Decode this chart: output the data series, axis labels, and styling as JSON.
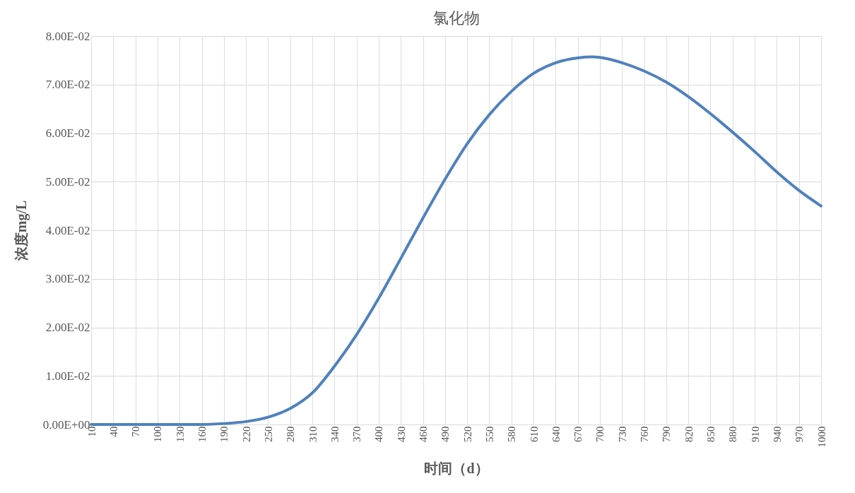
{
  "chart_data": {
    "type": "line",
    "title": "氯化物",
    "xlabel": "时间（d）",
    "ylabel": "浓度mg/L",
    "x": [
      10,
      40,
      70,
      100,
      130,
      160,
      190,
      220,
      250,
      280,
      310,
      340,
      370,
      400,
      430,
      460,
      490,
      520,
      550,
      580,
      610,
      640,
      670,
      690,
      700,
      730,
      760,
      790,
      820,
      850,
      880,
      910,
      940,
      970,
      1000
    ],
    "series": [
      {
        "color": "#4f81bd",
        "values": [
          0,
          0,
          0,
          0,
          0,
          0,
          0.0002,
          0.0006,
          0.0015,
          0.0033,
          0.0065,
          0.012,
          0.0185,
          0.026,
          0.0342,
          0.0425,
          0.0505,
          0.0578,
          0.0638,
          0.0686,
          0.0723,
          0.0745,
          0.0755,
          0.0757,
          0.0756,
          0.0745,
          0.0728,
          0.0705,
          0.0675,
          0.064,
          0.0602,
          0.0562,
          0.052,
          0.0482,
          0.045
        ]
      }
    ],
    "xlim": [
      10,
      1000
    ],
    "xticks": [
      10,
      40,
      70,
      100,
      130,
      160,
      190,
      220,
      250,
      280,
      310,
      340,
      370,
      400,
      430,
      460,
      490,
      520,
      550,
      580,
      610,
      640,
      670,
      700,
      730,
      760,
      790,
      820,
      850,
      880,
      910,
      940,
      970,
      1000
    ],
    "ylim": [
      0,
      0.08
    ],
    "yticks": [
      {
        "value": 0,
        "label": "0.00E+00"
      },
      {
        "value": 0.01,
        "label": "1.00E-02"
      },
      {
        "value": 0.02,
        "label": "2.00E-02"
      },
      {
        "value": 0.03,
        "label": "3.00E-02"
      },
      {
        "value": 0.04,
        "label": "4.00E-02"
      },
      {
        "value": 0.05,
        "label": "5.00E-02"
      },
      {
        "value": 0.06,
        "label": "6.00E-02"
      },
      {
        "value": 0.07,
        "label": "7.00E-02"
      },
      {
        "value": 0.08,
        "label": "8.00E-02"
      }
    ],
    "grid": true,
    "marker": "none",
    "line_style": "solid"
  }
}
